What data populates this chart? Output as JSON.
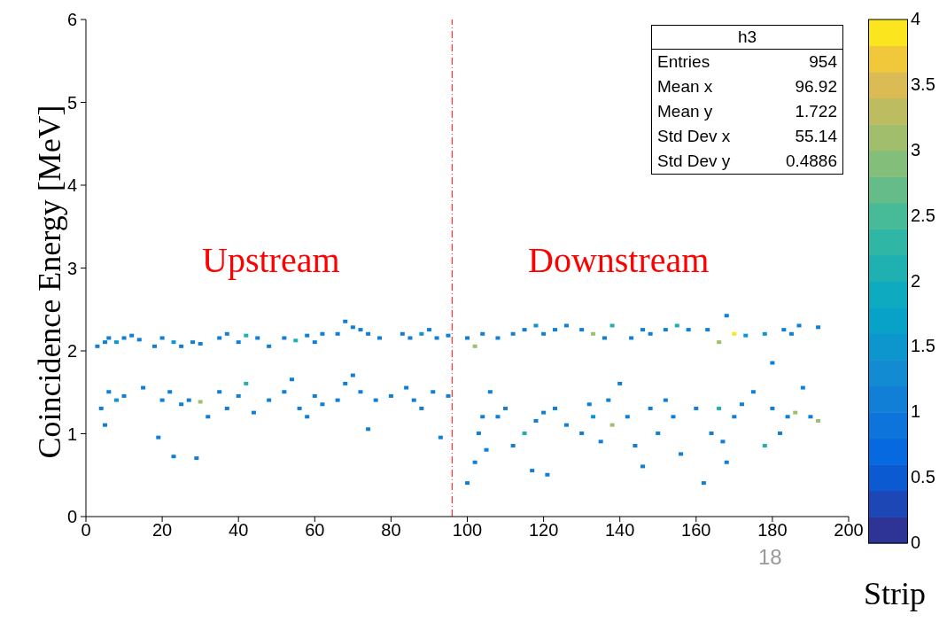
{
  "chart_data": {
    "type": "scatter",
    "xlabel": "Strip",
    "ylabel": "Coincidence Energy [MeV]",
    "xlim": [
      0,
      200
    ],
    "xticks": [
      0,
      20,
      40,
      60,
      80,
      100,
      120,
      140,
      160,
      180,
      200
    ],
    "ylim": [
      0,
      6
    ],
    "yticks": [
      0,
      1,
      2,
      3,
      4,
      5,
      6
    ],
    "clim": [
      0,
      4
    ],
    "cticks": [
      0,
      0.5,
      1,
      1.5,
      2,
      2.5,
      3,
      3.5,
      4
    ],
    "grid": false,
    "legend": false,
    "marker": "square",
    "ref_lines": [
      {
        "axis": "x",
        "value": 96,
        "color": "#ff0000",
        "line_style": "dashed"
      }
    ],
    "annotations": [
      "Upstream",
      "Downstream",
      "h3",
      "Entries 954",
      "Mean x 96.92",
      "Mean y 1.722",
      "Std Dev x 55.14",
      "Std Dev y 0.4886",
      "18"
    ],
    "x": [
      3,
      5,
      6,
      8,
      10,
      12,
      14,
      18,
      20,
      23,
      25,
      28,
      30,
      35,
      37,
      40,
      42,
      45,
      48,
      52,
      55,
      58,
      60,
      62,
      66,
      68,
      70,
      72,
      74,
      77,
      83,
      85,
      88,
      90,
      92,
      95,
      4,
      5,
      6,
      8,
      10,
      15,
      19,
      20,
      22,
      23,
      25,
      27,
      29,
      30,
      32,
      35,
      37,
      40,
      42,
      44,
      48,
      52,
      54,
      56,
      58,
      60,
      62,
      66,
      68,
      70,
      72,
      74,
      76,
      80,
      84,
      86,
      88,
      91,
      93,
      95,
      100,
      102,
      104,
      108,
      112,
      115,
      118,
      120,
      123,
      126,
      130,
      133,
      136,
      138,
      143,
      146,
      148,
      152,
      155,
      158,
      163,
      166,
      168,
      170,
      173,
      178,
      183,
      185,
      187,
      192,
      180,
      100,
      102,
      103,
      104,
      105,
      106,
      108,
      110,
      112,
      115,
      117,
      118,
      120,
      121,
      123,
      126,
      130,
      132,
      133,
      135,
      137,
      138,
      140,
      142,
      144,
      146,
      148,
      150,
      152,
      154,
      156,
      160,
      162,
      164,
      166,
      167,
      168,
      170,
      172,
      175,
      178,
      180,
      182,
      184,
      186,
      188,
      190,
      192
    ],
    "values": [
      2.05,
      2.1,
      2.15,
      2.1,
      2.15,
      2.18,
      2.13,
      2.05,
      2.15,
      2.1,
      2.05,
      2.1,
      2.08,
      2.15,
      2.2,
      2.1,
      2.18,
      2.15,
      2.05,
      2.15,
      2.12,
      2.18,
      2.1,
      2.2,
      2.2,
      2.35,
      2.28,
      2.25,
      2.2,
      2.15,
      2.2,
      2.15,
      2.2,
      2.25,
      2.15,
      2.18,
      1.3,
      1.1,
      1.5,
      1.4,
      1.45,
      1.55,
      0.95,
      1.4,
      1.5,
      0.72,
      1.35,
      1.4,
      0.7,
      1.38,
      1.2,
      1.5,
      1.3,
      1.45,
      1.6,
      1.25,
      1.4,
      1.5,
      1.65,
      1.3,
      1.2,
      1.45,
      1.35,
      1.4,
      1.6,
      1.7,
      1.5,
      1.05,
      1.4,
      1.45,
      1.55,
      1.4,
      1.3,
      1.5,
      0.95,
      1.45,
      2.15,
      2.05,
      2.2,
      2.15,
      2.2,
      2.25,
      2.3,
      2.2,
      2.25,
      2.3,
      2.25,
      2.2,
      2.15,
      2.3,
      2.15,
      2.25,
      2.2,
      2.25,
      2.3,
      2.25,
      2.25,
      2.1,
      2.42,
      2.2,
      2.18,
      2.2,
      2.25,
      2.2,
      2.3,
      2.28,
      1.85,
      0.4,
      0.65,
      1,
      1.2,
      0.8,
      1.5,
      1.2,
      1.3,
      0.85,
      1,
      0.55,
      1.15,
      1.25,
      0.5,
      1.3,
      1.1,
      1,
      1.35,
      1.2,
      0.9,
      1.4,
      1.1,
      1.6,
      1.2,
      0.85,
      0.6,
      1.3,
      1,
      1.4,
      1.2,
      0.75,
      1.3,
      0.4,
      1,
      1.3,
      0.9,
      0.65,
      1.2,
      1.35,
      1.5,
      0.85,
      1.3,
      1,
      1.2,
      1.25,
      1.55,
      1.2,
      1.15
    ],
    "cvalues": [
      1,
      1,
      1,
      1.5,
      1,
      1,
      1,
      1,
      1,
      1.5,
      1,
      1,
      1,
      1,
      1,
      1,
      2,
      1,
      1,
      1,
      2,
      1,
      1,
      1,
      1,
      1,
      1,
      1,
      1,
      1,
      1,
      1,
      1.5,
      1,
      1,
      1,
      1,
      1,
      1,
      1.5,
      1,
      1,
      1,
      1,
      1,
      1,
      1,
      1,
      1,
      3,
      1,
      1,
      1,
      1,
      2,
      1,
      1,
      1,
      1,
      1,
      1,
      1,
      1,
      1,
      1,
      1,
      1,
      1,
      1,
      1,
      1,
      1,
      1,
      1,
      1,
      1,
      1,
      3,
      1,
      1,
      1,
      1,
      1.5,
      1,
      1,
      1,
      1,
      3,
      1,
      2,
      1,
      1,
      1,
      1,
      2,
      1,
      1,
      3,
      1,
      4,
      1.5,
      1.5,
      1,
      1,
      1,
      1,
      1,
      1,
      1,
      1,
      1,
      1,
      1,
      1,
      1,
      1,
      2,
      1,
      1,
      1,
      1,
      1,
      1,
      1,
      1,
      1.5,
      1,
      1,
      3,
      1,
      1,
      1,
      1,
      1,
      1,
      1,
      1,
      1,
      1,
      1,
      1,
      2,
      1,
      1,
      1,
      1,
      1,
      2,
      1,
      1,
      1,
      3,
      1,
      1,
      3
    ]
  }
}
